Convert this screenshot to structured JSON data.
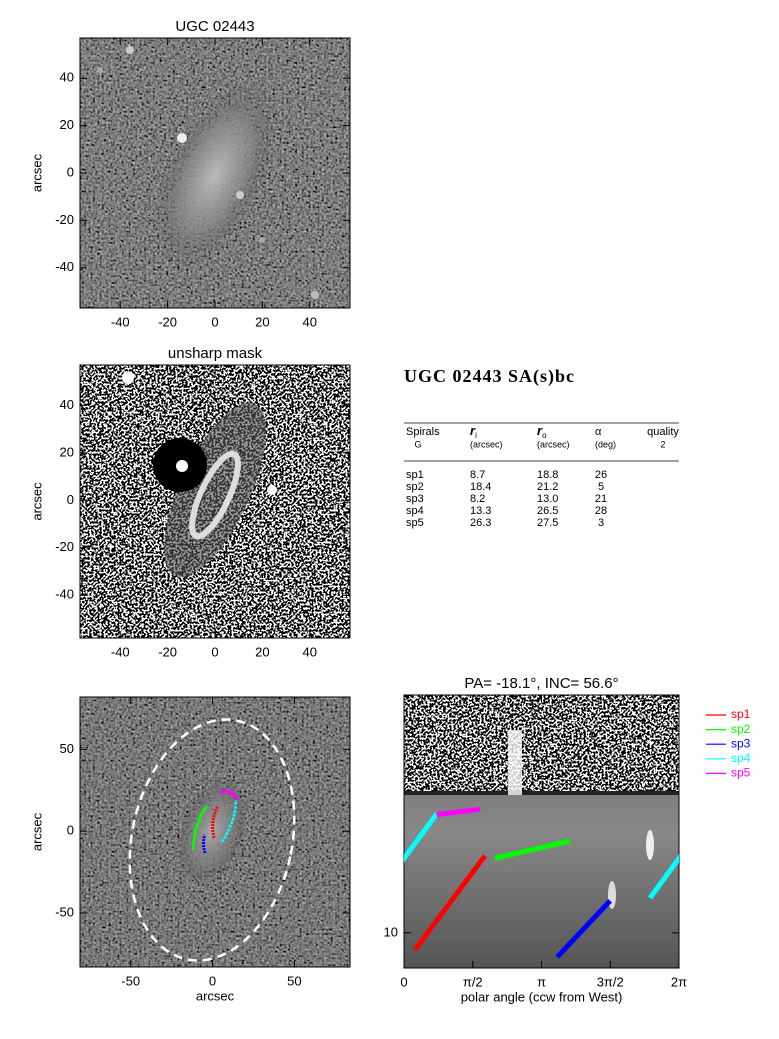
{
  "chart_data": [
    {
      "type": "image",
      "title": "UGC 02443",
      "ylabel": "arcsec",
      "xlim": [
        -57,
        57
      ],
      "ylim": [
        -57,
        57
      ],
      "xticks": [
        -40,
        -20,
        0,
        20,
        40
      ],
      "yticks": [
        -40,
        -20,
        0,
        20,
        40
      ]
    },
    {
      "type": "image",
      "title": "unsharp mask",
      "ylabel": "arcsec",
      "xlim": [
        -57,
        57
      ],
      "ylim": [
        -58,
        57
      ],
      "xticks": [
        -40,
        -20,
        0,
        20,
        40
      ],
      "yticks": [
        -40,
        -20,
        0,
        20,
        40
      ]
    },
    {
      "type": "image",
      "xlabel": "arcsec",
      "ylabel": "arcsec",
      "xlim": [
        -81,
        84
      ],
      "ylim": [
        -83,
        82
      ],
      "xticks": [
        -50,
        0,
        50
      ],
      "yticks": [
        -50,
        0,
        50
      ]
    },
    {
      "type": "line",
      "title": "PA= -18.1°, INC=  56.6°",
      "xlabel": "polar angle (ccw from West)",
      "xlim": [
        0,
        6.283
      ],
      "ylim": [
        7.5,
        70
      ],
      "log_y": true,
      "xticks": [
        0,
        {
          "value": 1.571,
          "label": "π/2"
        },
        {
          "value": 3.142,
          "label": "π"
        },
        {
          "value": 4.712,
          "label": "3π/2"
        },
        {
          "value": 6.283,
          "label": "2π"
        }
      ],
      "yticks": [
        10
      ],
      "series": [
        {
          "name": "sp1",
          "color": "#ff0000",
          "x": [
            0.25,
            1.85
          ]
        },
        {
          "name": "sp2",
          "color": "#00ff00",
          "x": [
            2.08,
            3.79
          ]
        },
        {
          "name": "sp3",
          "color": "#0000ff",
          "x": [
            3.5,
            4.71
          ]
        },
        {
          "name": "sp4",
          "color": "#00ffff",
          "x": [
            5.62,
            7.03
          ]
        },
        {
          "name": "sp5",
          "color": "#ff00ff",
          "x": [
            0.75,
            1.74
          ]
        }
      ],
      "legend": "outside right"
    }
  ],
  "table": {
    "title": "UGC 02443  SA(s)bc",
    "header": [
      "Spirals",
      {
        "text": "r",
        "sub": "i"
      },
      {
        "text": "r",
        "sub": "o"
      },
      "α",
      "quality"
    ],
    "subheader": [
      "G",
      "(arcsec)",
      "(arcsec)",
      "(deg)",
      "2"
    ],
    "rows": [
      [
        "sp1",
        "8.7",
        "18.8",
        "26"
      ],
      [
        "sp2",
        "18.4",
        "21.2",
        "5"
      ],
      [
        "sp3",
        "8.2",
        "13.0",
        "21"
      ],
      [
        "sp4",
        "13.3",
        "26.5",
        "28"
      ],
      [
        "sp5",
        "26.3",
        "27.5",
        "3"
      ]
    ]
  }
}
